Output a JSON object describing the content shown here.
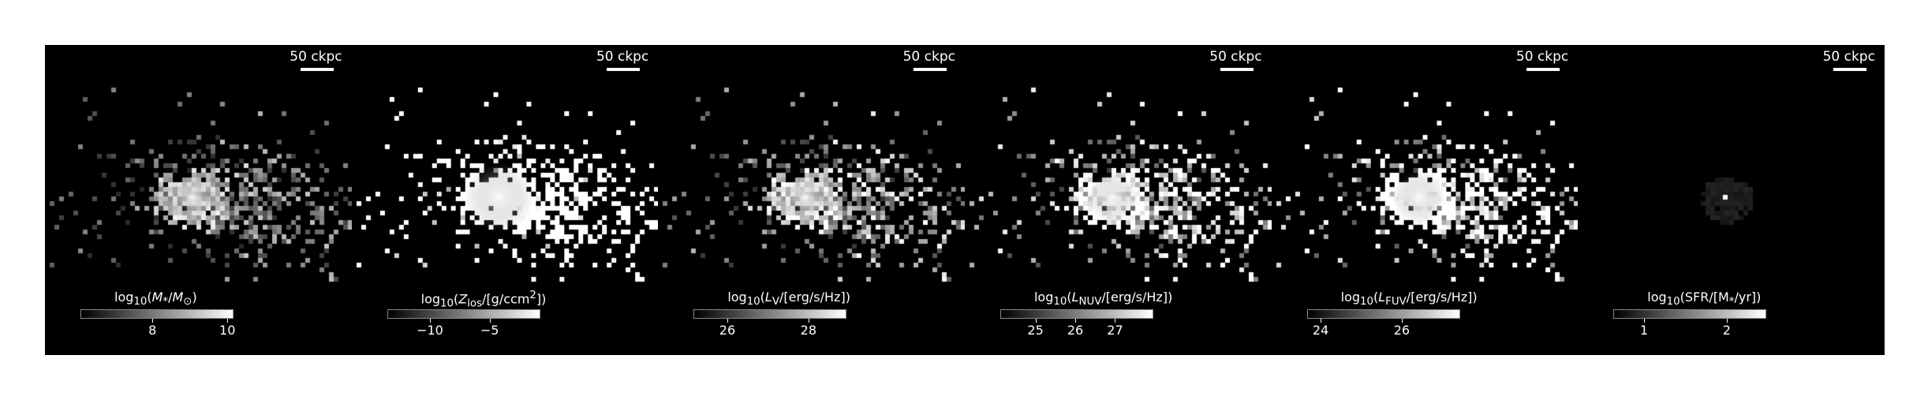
{
  "scale_bar_label": "50 ckpc",
  "panels": [
    {
      "name": "stellar-mass",
      "colorbar_label": "log10(M*/M⊙)",
      "ticks": [
        {
          "label": "8",
          "frac": 0.47
        },
        {
          "label": "10",
          "frac": 0.96
        }
      ],
      "brightness": 1.0,
      "spread": 1.0
    },
    {
      "name": "metallicity",
      "colorbar_label": "log10(Zlos/[g/ccm²])",
      "ticks": [
        {
          "label": "−10",
          "frac": 0.28
        },
        {
          "label": "−5",
          "frac": 0.67
        }
      ],
      "brightness": 2.2,
      "spread": 2.1
    },
    {
      "name": "luminosity-v",
      "colorbar_label": "log10(LV/[erg/s/Hz])",
      "ticks": [
        {
          "label": "26",
          "frac": 0.22
        },
        {
          "label": "28",
          "frac": 0.75
        }
      ],
      "brightness": 1.0,
      "spread": 1.3
    },
    {
      "name": "luminosity-nuv",
      "colorbar_label": "log10(LNUV/[erg/s/Hz])",
      "ticks": [
        {
          "label": "25",
          "frac": 0.23
        },
        {
          "label": "26",
          "frac": 0.49
        },
        {
          "label": "27",
          "frac": 0.75
        }
      ],
      "brightness": 1.2,
      "spread": 1.5
    },
    {
      "name": "luminosity-fuv",
      "colorbar_label": "log10(LFUV/[erg/s/Hz])",
      "ticks": [
        {
          "label": "24",
          "frac": 0.09
        },
        {
          "label": "26",
          "frac": 0.62
        }
      ],
      "brightness": 1.4,
      "spread": 1.6
    },
    {
      "name": "sfr",
      "colorbar_label": "log10(SFR/[M*/yr])",
      "ticks": [
        {
          "label": "1",
          "frac": 0.2
        },
        {
          "label": "2",
          "frac": 0.74
        }
      ],
      "brightness": 0.15,
      "spread": 0.0
    }
  ]
}
